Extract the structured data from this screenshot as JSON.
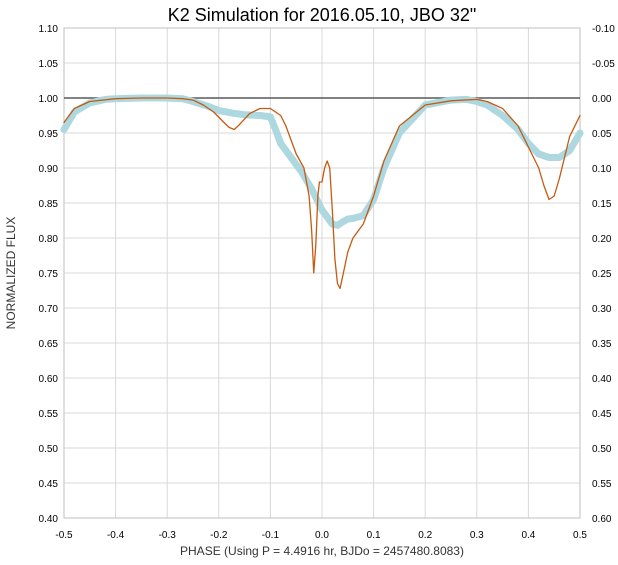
{
  "chart_data": {
    "type": "line",
    "title": "K2 Simulation for 2016.05.10, JBO 32\"",
    "xlabel": "PHASE (Using P = 4.4916 hr, BJDo = 2457480.8083)",
    "ylabel": "NORMALIZED FLUX",
    "xlim": [
      -0.5,
      0.5
    ],
    "ylim": [
      0.4,
      1.1
    ],
    "y2lim": [
      -0.1,
      0.6
    ],
    "y2_inverted": true,
    "grid": true,
    "legend": "none",
    "x_ticks": [
      "-0.5",
      "-0.4",
      "-0.3",
      "-0.2",
      "-0.1",
      "0.0",
      "0.1",
      "0.2",
      "0.3",
      "0.4",
      "0.5"
    ],
    "y_ticks": [
      "0.40",
      "0.45",
      "0.50",
      "0.55",
      "0.60",
      "0.65",
      "0.70",
      "0.75",
      "0.80",
      "0.85",
      "0.90",
      "0.95",
      "1.00",
      "1.05",
      "1.10"
    ],
    "y2_ticks": [
      "0.60",
      "0.55",
      "0.50",
      "0.45",
      "0.40",
      "0.35",
      "0.30",
      "0.25",
      "0.20",
      "0.15",
      "0.10",
      "0.05",
      "0.00",
      "-0.05",
      "-0.10"
    ],
    "reference_line": {
      "y": 1.0,
      "color": "#595959"
    },
    "series": [
      {
        "color": "#ADD8DF",
        "style": "thick",
        "x": [
          -0.5,
          -0.48,
          -0.45,
          -0.42,
          -0.4,
          -0.35,
          -0.3,
          -0.27,
          -0.25,
          -0.22,
          -0.2,
          -0.17,
          -0.15,
          -0.12,
          -0.1,
          -0.09,
          -0.08,
          -0.06,
          -0.04,
          -0.02,
          -0.01,
          0.0,
          0.01,
          0.02,
          0.03,
          0.04,
          0.05,
          0.06,
          0.08,
          0.1,
          0.12,
          0.15,
          0.2,
          0.25,
          0.28,
          0.3,
          0.32,
          0.35,
          0.38,
          0.4,
          0.42,
          0.44,
          0.46,
          0.48,
          0.5
        ],
        "y": [
          0.955,
          0.98,
          0.993,
          0.998,
          0.999,
          1.0,
          1.0,
          0.999,
          0.995,
          0.988,
          0.982,
          0.978,
          0.976,
          0.975,
          0.973,
          0.955,
          0.935,
          0.915,
          0.895,
          0.87,
          0.855,
          0.84,
          0.83,
          0.82,
          0.818,
          0.823,
          0.827,
          0.828,
          0.832,
          0.855,
          0.9,
          0.95,
          0.99,
          0.997,
          0.998,
          0.995,
          0.99,
          0.975,
          0.955,
          0.935,
          0.92,
          0.915,
          0.915,
          0.925,
          0.95
        ]
      },
      {
        "color": "#C55A11",
        "style": "thin",
        "x": [
          -0.5,
          -0.48,
          -0.45,
          -0.4,
          -0.35,
          -0.3,
          -0.27,
          -0.25,
          -0.23,
          -0.21,
          -0.19,
          -0.18,
          -0.17,
          -0.16,
          -0.14,
          -0.12,
          -0.1,
          -0.08,
          -0.07,
          -0.06,
          -0.05,
          -0.035,
          -0.025,
          -0.02,
          -0.016,
          -0.012,
          -0.008,
          -0.005,
          0.0,
          0.005,
          0.01,
          0.015,
          0.02,
          0.025,
          0.03,
          0.035,
          0.04,
          0.05,
          0.06,
          0.07,
          0.08,
          0.1,
          0.12,
          0.15,
          0.2,
          0.25,
          0.3,
          0.32,
          0.35,
          0.38,
          0.4,
          0.42,
          0.43,
          0.44,
          0.45,
          0.46,
          0.47,
          0.48,
          0.5
        ],
        "y": [
          0.965,
          0.985,
          0.995,
          0.999,
          1.0,
          1.0,
          0.999,
          0.997,
          0.99,
          0.98,
          0.965,
          0.958,
          0.955,
          0.962,
          0.978,
          0.985,
          0.985,
          0.975,
          0.96,
          0.94,
          0.92,
          0.9,
          0.86,
          0.81,
          0.75,
          0.79,
          0.86,
          0.88,
          0.88,
          0.9,
          0.91,
          0.9,
          0.84,
          0.77,
          0.735,
          0.728,
          0.745,
          0.78,
          0.8,
          0.81,
          0.82,
          0.86,
          0.91,
          0.96,
          0.99,
          0.996,
          0.998,
          0.995,
          0.985,
          0.96,
          0.93,
          0.9,
          0.875,
          0.855,
          0.86,
          0.885,
          0.915,
          0.945,
          0.975
        ]
      }
    ]
  }
}
